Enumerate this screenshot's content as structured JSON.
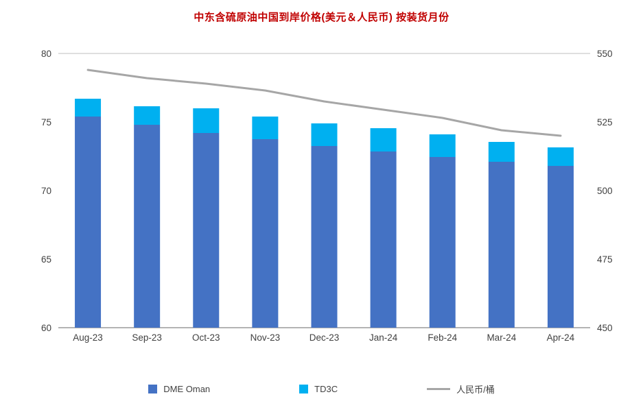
{
  "chart_data": {
    "type": "combo",
    "title": "中东含硫原油中国到岸价格(美元＆人民币) 按装货月份",
    "title_color": "#C00000",
    "categories": [
      "Aug-23",
      "Sep-23",
      "Oct-23",
      "Nov-23",
      "Dec-23",
      "Jan-24",
      "Feb-24",
      "Mar-24",
      "Apr-24"
    ],
    "series": [
      {
        "name": "DME Oman",
        "type": "bar-stacked",
        "axis": "left",
        "color": "#4472C4",
        "values": [
          75.4,
          74.8,
          74.2,
          73.75,
          73.25,
          72.85,
          72.45,
          72.1,
          71.8
        ]
      },
      {
        "name": "TD3C",
        "type": "bar-stacked",
        "axis": "left",
        "color": "#00B0F0",
        "values": [
          1.3,
          1.35,
          1.8,
          1.65,
          1.65,
          1.7,
          1.65,
          1.45,
          1.35
        ]
      },
      {
        "name": "人民币/桶",
        "type": "line",
        "axis": "right",
        "color": "#A6A6A6",
        "values": [
          544,
          541,
          539,
          536.5,
          532.5,
          529.5,
          526.5,
          522,
          520
        ]
      }
    ],
    "left_axis": {
      "min": 60,
      "max": 80,
      "ticks": [
        80,
        75,
        70,
        65,
        60
      ]
    },
    "right_axis": {
      "min": 450,
      "max": 550,
      "ticks": [
        550,
        525,
        500,
        475,
        450
      ]
    },
    "grid": "top-and-bottom-only",
    "legend_position": "bottom",
    "axis_text_color": "#404040",
    "gridline_color": "#BFBFBF",
    "axisline_color": "#9b9b9b"
  }
}
